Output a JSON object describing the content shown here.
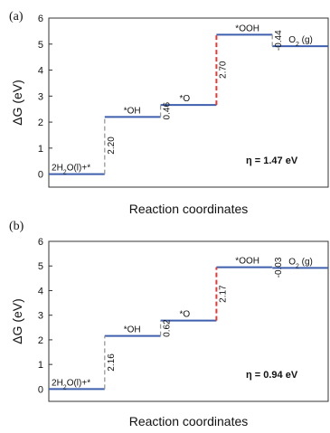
{
  "chart_data": [
    {
      "panel_label": "(a)",
      "type": "line",
      "xlabel": "Reaction coordinates",
      "ylabel": "ΔG (eV)",
      "ylim": [
        -0.5,
        6
      ],
      "y_ticks": [
        "0",
        "1",
        "2",
        "3",
        "4",
        "5",
        "6"
      ],
      "series": [
        {
          "levels": [
            {
              "label": "2H2O(l)+*",
              "value": 0.0
            },
            {
              "label": "*OH",
              "value": 2.2
            },
            {
              "label": "*O",
              "value": 2.66
            },
            {
              "label": "*OOH",
              "value": 5.36
            },
            {
              "label": "O2 (g)",
              "value": 4.92
            }
          ]
        }
      ],
      "step_labels": [
        "2.20",
        "0.46",
        "2.70",
        "-0.44"
      ],
      "highlight_step": 2,
      "annotation": "η = 1.47 eV",
      "colors": {
        "level": "#3d5fae",
        "connector": "#9a9a9a",
        "highlight": "#e53935"
      }
    },
    {
      "panel_label": "(b)",
      "type": "line",
      "xlabel": "Reaction coordinates",
      "ylabel": "ΔG (eV)",
      "ylim": [
        -0.5,
        6
      ],
      "y_ticks": [
        "0",
        "1",
        "2",
        "3",
        "4",
        "5",
        "6"
      ],
      "series": [
        {
          "levels": [
            {
              "label": "2H2O(l)+*",
              "value": 0.0
            },
            {
              "label": "*OH",
              "value": 2.16
            },
            {
              "label": "*O",
              "value": 2.78
            },
            {
              "label": "*OOH",
              "value": 4.95
            },
            {
              "label": "O2 (g)",
              "value": 4.92
            }
          ]
        }
      ],
      "step_labels": [
        "2.16",
        "0.62",
        "2.17",
        "-0.03"
      ],
      "highlight_step": 2,
      "annotation": "η = 0.94 eV",
      "colors": {
        "level": "#3d5fae",
        "connector": "#9a9a9a",
        "highlight": "#e53935"
      }
    }
  ]
}
